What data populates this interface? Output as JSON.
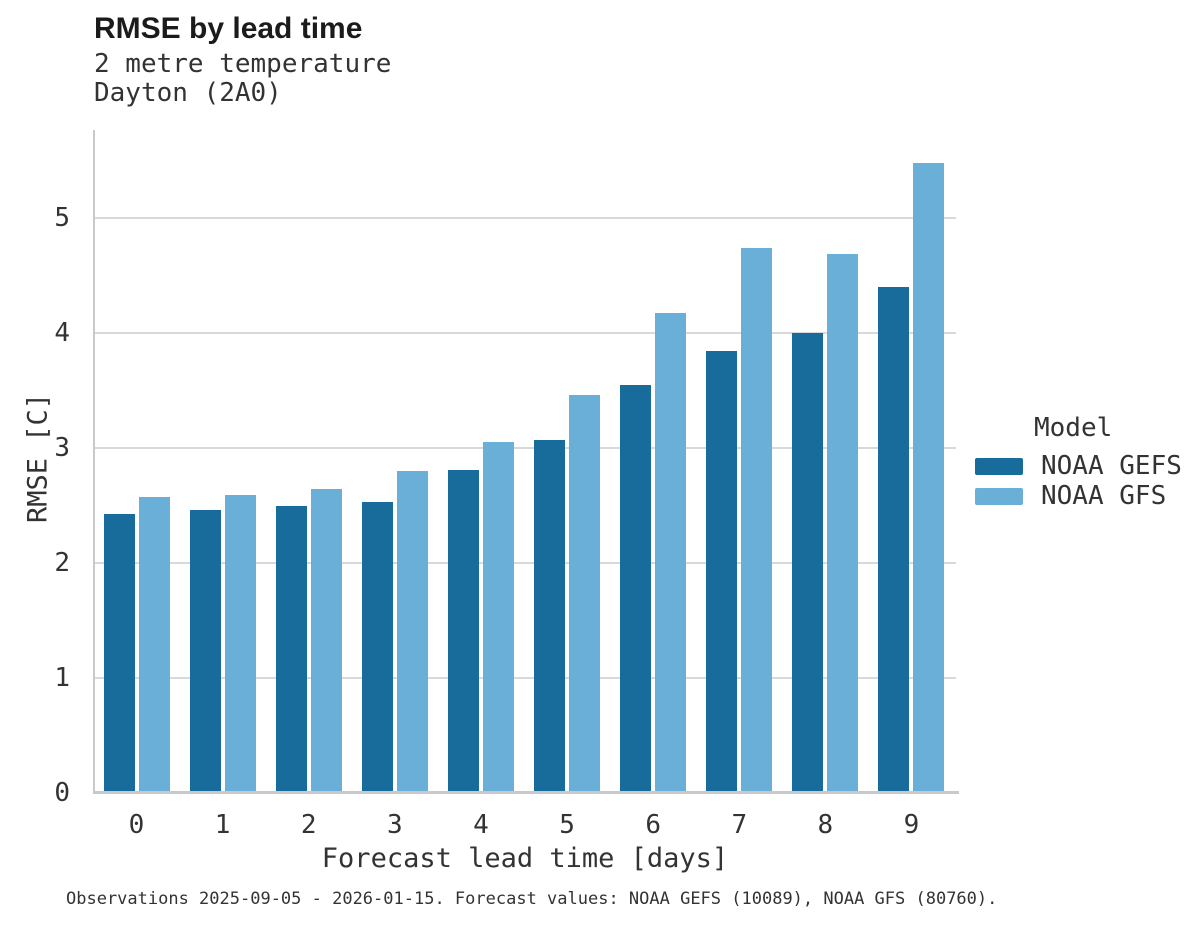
{
  "chart_data": {
    "type": "bar",
    "title": "RMSE by lead time",
    "subtitle_lines": [
      "2 metre temperature",
      "Dayton (2A0)"
    ],
    "xlabel": "Forecast lead time [days]",
    "ylabel": "RMSE [C]",
    "categories": [
      "0",
      "1",
      "2",
      "3",
      "4",
      "5",
      "6",
      "7",
      "8",
      "9"
    ],
    "series": [
      {
        "name": "NOAA GEFS",
        "color": "#186c9b",
        "values": [
          2.43,
          2.46,
          2.5,
          2.53,
          2.81,
          3.07,
          3.55,
          3.84,
          4.0,
          4.4
        ]
      },
      {
        "name": "NOAA GFS",
        "color": "#6aafd7",
        "values": [
          2.57,
          2.59,
          2.64,
          2.8,
          3.05,
          3.46,
          4.17,
          4.74,
          4.69,
          5.48
        ]
      }
    ],
    "ylim": [
      0,
      5.77
    ],
    "yticks": [
      0,
      1,
      2,
      3,
      4,
      5
    ],
    "grid": "horizontal",
    "legend_title": "Model",
    "legend_position": "right-center",
    "caption": "Observations 2025-09-05 - 2026-01-15. Forecast values: NOAA GEFS (10089), NOAA GFS (80760)."
  },
  "colors": {
    "background": "#ffffff",
    "grid": "#d9d9d9",
    "axis": "#c9c9c9",
    "text": "#333333",
    "title_text": "#1b1b1b",
    "noaa_gefs": "#186c9b",
    "noaa_gfs": "#6aafd7"
  }
}
